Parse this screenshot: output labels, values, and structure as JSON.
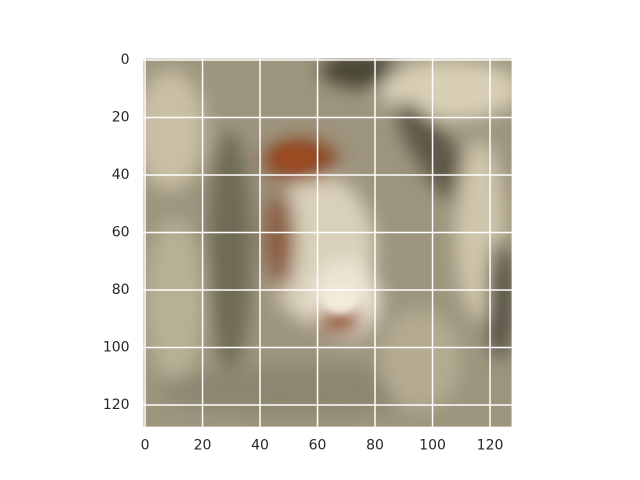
{
  "chart_data": {
    "type": "image",
    "xlim": [
      -0.5,
      127.5
    ],
    "ylim": [
      127.5,
      -0.5
    ],
    "xticks": [
      0,
      20,
      40,
      60,
      80,
      100,
      120
    ],
    "yticks": [
      0,
      20,
      40,
      60,
      80,
      100,
      120
    ],
    "grid": true
  }
}
